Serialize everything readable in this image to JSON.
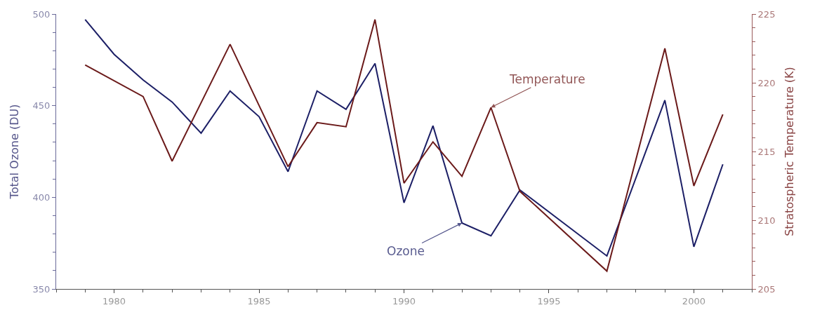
{
  "chart_data": {
    "type": "line",
    "ylabel": "Total Ozone (DU)",
    "y2label": "Stratospheric Temperature (K)",
    "xlim": [
      1978,
      2002
    ],
    "xticks": [
      1980,
      1985,
      1990,
      1995,
      2000
    ],
    "ylim": [
      350,
      500
    ],
    "yticks": [
      350,
      400,
      450,
      500
    ],
    "y2lim": [
      205,
      225
    ],
    "y2ticks": [
      205,
      210,
      215,
      220,
      225
    ],
    "legend": false,
    "series": [
      {
        "name": "Ozone",
        "color": "#1c1f66",
        "axis": "y",
        "x": [
          1979,
          1980,
          1981,
          1982,
          1983,
          1984,
          1985,
          1986,
          1987,
          1988,
          1989,
          1990,
          1991,
          1992,
          1993,
          1994,
          1997,
          1999,
          2000,
          2001
        ],
        "values": [
          497,
          478,
          464,
          452,
          435,
          458,
          444,
          414,
          458,
          448,
          473,
          397,
          439,
          386,
          379,
          404,
          368,
          453,
          373,
          418
        ]
      },
      {
        "name": "Temperature",
        "color": "#6b1a1a",
        "axis": "y2",
        "x": [
          1979,
          1981,
          1982,
          1984,
          1986,
          1987,
          1988,
          1989,
          1990,
          1991,
          1992,
          1993,
          1994,
          1997,
          1999,
          2000,
          2001
        ],
        "values": [
          221.3,
          219.0,
          214.3,
          222.8,
          213.9,
          217.1,
          216.8,
          224.6,
          212.7,
          215.7,
          213.2,
          218.2,
          212.1,
          206.3,
          222.5,
          212.5,
          217.7
        ]
      }
    ]
  }
}
